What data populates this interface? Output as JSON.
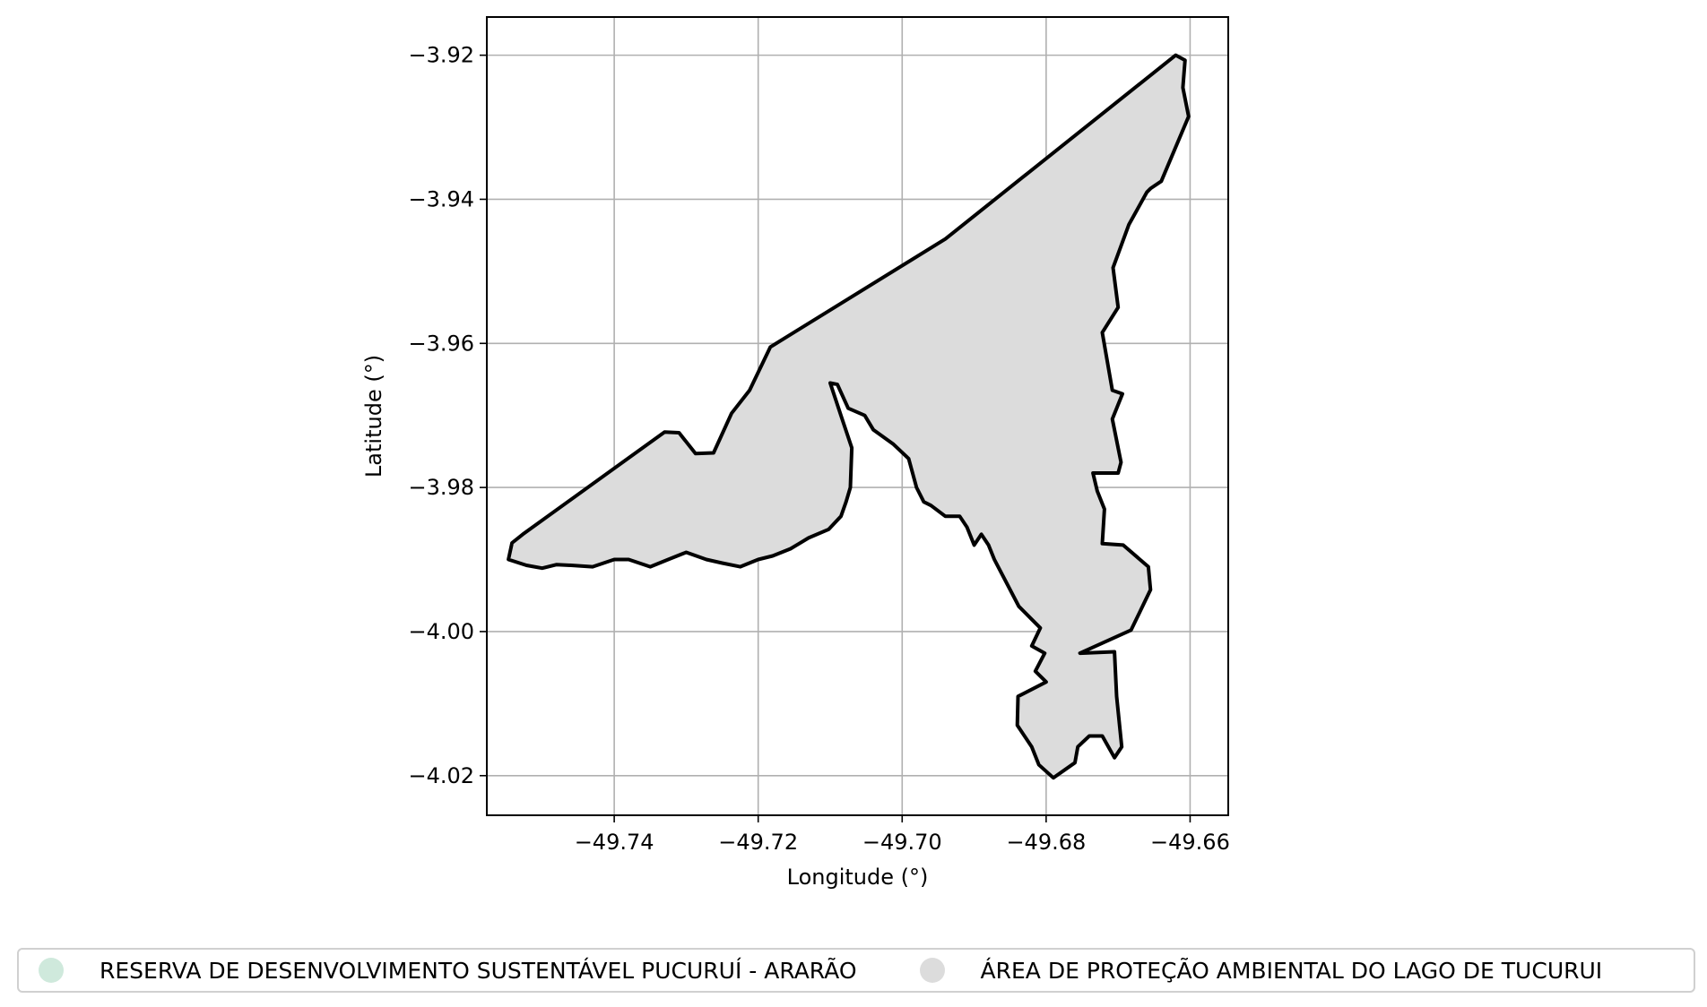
{
  "map": {
    "xlabel": "Longitude (°)",
    "ylabel": "Latitude (°)",
    "x_ticks": [
      -49.74,
      -49.72,
      -49.7,
      -49.68,
      -49.66
    ],
    "x_tick_labels": [
      "−49.74",
      "−49.72",
      "−49.70",
      "−49.68",
      "−49.66"
    ],
    "y_ticks": [
      -3.92,
      -3.94,
      -3.96,
      -3.98,
      -4.0,
      -4.02
    ],
    "y_tick_labels": [
      "−3.92",
      "−3.94",
      "−3.96",
      "−3.98",
      "−4.00",
      "−4.02"
    ],
    "xlim": [
      -49.7577,
      -49.6547
    ],
    "ylim": [
      -4.0255,
      -3.9147
    ],
    "grid": true,
    "legend_position": "bottom"
  },
  "legend": {
    "items": [
      {
        "label": "RESERVA DE DESENVOLVIMENTO SUSTENTÁVEL PUCURUÍ - ARARÃO",
        "color": "#cfe9dc"
      },
      {
        "label": "ÁREA DE PROTEÇÃO AMBIENTAL DO LAGO DE TUCURUI",
        "color": "#dcdcdc"
      }
    ]
  },
  "colors": {
    "polygon_fill": "#dcdcdc",
    "polygon_edge": "#000000",
    "grid": "#b0b0b0",
    "frame": "#000000"
  },
  "chart_data": {
    "type": "map",
    "features": [
      {
        "name": "ÁREA DE PROTEÇÃO AMBIENTAL DO LAGO DE TUCURUI",
        "color": "#dcdcdc",
        "outline": [
          [
            -49.7527,
            -3.9865
          ],
          [
            -49.733,
            -3.9723
          ],
          [
            -49.731,
            -3.9724
          ],
          [
            -49.7287,
            -3.9753
          ],
          [
            -49.7262,
            -3.9752
          ],
          [
            -49.7237,
            -3.9697
          ],
          [
            -49.7212,
            -3.9665
          ],
          [
            -49.7183,
            -3.9605
          ],
          [
            -49.694,
            -3.9455
          ],
          [
            -49.662,
            -3.92
          ],
          [
            -49.6607,
            -3.9207
          ],
          [
            -49.661,
            -3.9245
          ],
          [
            -49.6602,
            -3.9285
          ],
          [
            -49.664,
            -3.9375
          ],
          [
            -49.6655,
            -3.9385
          ],
          [
            -49.666,
            -3.939
          ],
          [
            -49.6685,
            -3.9435
          ],
          [
            -49.6707,
            -3.9495
          ],
          [
            -49.67,
            -3.955
          ],
          [
            -49.6722,
            -3.9585
          ],
          [
            -49.6708,
            -3.9665
          ],
          [
            -49.6694,
            -3.967
          ],
          [
            -49.6708,
            -3.9705
          ],
          [
            -49.6696,
            -3.9765
          ],
          [
            -49.67,
            -3.978
          ],
          [
            -49.6735,
            -3.978
          ],
          [
            -49.6729,
            -3.9805
          ],
          [
            -49.6719,
            -3.983
          ],
          [
            -49.6722,
            -3.9878
          ],
          [
            -49.6693,
            -3.988
          ],
          [
            -49.6658,
            -3.991
          ],
          [
            -49.6655,
            -3.9942
          ],
          [
            -49.6682,
            -3.9998
          ],
          [
            -49.6753,
            -4.003
          ],
          [
            -49.6705,
            -4.0028
          ],
          [
            -49.6702,
            -4.009
          ],
          [
            -49.6695,
            -4.016
          ],
          [
            -49.6705,
            -4.0175
          ],
          [
            -49.6722,
            -4.0145
          ],
          [
            -49.674,
            -4.0145
          ],
          [
            -49.6756,
            -4.016
          ],
          [
            -49.676,
            -4.0182
          ],
          [
            -49.679,
            -4.0203
          ],
          [
            -49.681,
            -4.0185
          ],
          [
            -49.682,
            -4.016
          ],
          [
            -49.684,
            -4.013
          ],
          [
            -49.6839,
            -4.009
          ],
          [
            -49.68,
            -4.007
          ],
          [
            -49.6815,
            -4.0055
          ],
          [
            -49.6802,
            -4.003
          ],
          [
            -49.682,
            -4.002
          ],
          [
            -49.6808,
            -3.9995
          ],
          [
            -49.682,
            -3.9983
          ],
          [
            -49.6838,
            -3.9965
          ],
          [
            -49.6872,
            -3.99
          ],
          [
            -49.688,
            -3.988
          ],
          [
            -49.689,
            -3.9865
          ],
          [
            -49.69,
            -3.988
          ],
          [
            -49.691,
            -3.9855
          ],
          [
            -49.692,
            -3.984
          ],
          [
            -49.694,
            -3.984
          ],
          [
            -49.696,
            -3.9825
          ],
          [
            -49.697,
            -3.982
          ],
          [
            -49.698,
            -3.98
          ],
          [
            -49.6991,
            -3.976
          ],
          [
            -49.7012,
            -3.974
          ],
          [
            -49.704,
            -3.972
          ],
          [
            -49.7052,
            -3.97
          ],
          [
            -49.7075,
            -3.969
          ],
          [
            -49.709,
            -3.9657
          ],
          [
            -49.71,
            -3.9655
          ],
          [
            -49.7085,
            -3.97
          ],
          [
            -49.707,
            -3.9745
          ],
          [
            -49.7072,
            -3.98
          ],
          [
            -49.7078,
            -3.982
          ],
          [
            -49.7085,
            -3.984
          ],
          [
            -49.7102,
            -3.9858
          ],
          [
            -49.713,
            -3.987
          ],
          [
            -49.7155,
            -3.9885
          ],
          [
            -49.718,
            -3.9895
          ],
          [
            -49.72,
            -3.99
          ],
          [
            -49.7225,
            -3.991
          ],
          [
            -49.725,
            -3.9905
          ],
          [
            -49.7272,
            -3.99
          ],
          [
            -49.73,
            -3.989
          ],
          [
            -49.7325,
            -3.99
          ],
          [
            -49.735,
            -3.991
          ],
          [
            -49.738,
            -3.99
          ],
          [
            -49.74,
            -3.99
          ],
          [
            -49.743,
            -3.991
          ],
          [
            -49.746,
            -3.9908
          ],
          [
            -49.748,
            -3.9907
          ],
          [
            -49.75,
            -3.9912
          ],
          [
            -49.7522,
            -3.9908
          ],
          [
            -49.7547,
            -3.99
          ],
          [
            -49.7542,
            -3.9877
          ]
        ]
      }
    ]
  }
}
